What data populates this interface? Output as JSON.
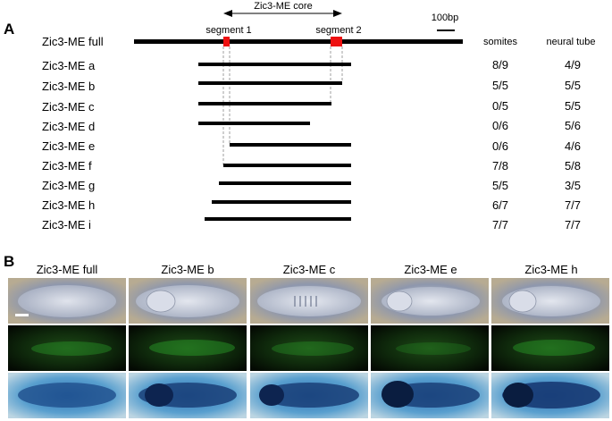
{
  "panel_a": {
    "letter": "A",
    "core_label": "Zic3-ME core",
    "scale_label": "100bp",
    "segment1_label": "segment 1",
    "segment2_label": "segment 2",
    "col_somites": "somites",
    "col_neural": "neural tube",
    "full_label": "Zic3-ME full",
    "rows": [
      {
        "label": "Zic3-ME a",
        "somites": "8/9",
        "neural": "4/9"
      },
      {
        "label": "Zic3-ME b",
        "somites": "5/5",
        "neural": "5/5"
      },
      {
        "label": "Zic3-ME c",
        "somites": "0/5",
        "neural": "5/5"
      },
      {
        "label": "Zic3-ME d",
        "somites": "0/6",
        "neural": "5/6"
      },
      {
        "label": "Zic3-ME e",
        "somites": "0/6",
        "neural": "4/6"
      },
      {
        "label": "Zic3-ME f",
        "somites": "7/8",
        "neural": "5/8"
      },
      {
        "label": "Zic3-ME g",
        "somites": "5/5",
        "neural": "3/5"
      },
      {
        "label": "Zic3-ME h",
        "somites": "6/7",
        "neural": "7/7"
      },
      {
        "label": "Zic3-ME i",
        "somites": "7/7",
        "neural": "7/7"
      }
    ],
    "colors": {
      "segment": "#ee1111",
      "line": "#000000",
      "guide": "#888888"
    }
  },
  "panel_b": {
    "letter": "B",
    "columns": [
      "Zic3-ME full",
      "Zic3-ME b",
      "Zic3-ME c",
      "Zic3-ME e",
      "Zic3-ME h"
    ],
    "colors": {
      "brightfield": "#9aa3b6",
      "fluorescence": "#0c1a08",
      "green": "#2db02d",
      "stain": "#1f4f8c"
    }
  }
}
